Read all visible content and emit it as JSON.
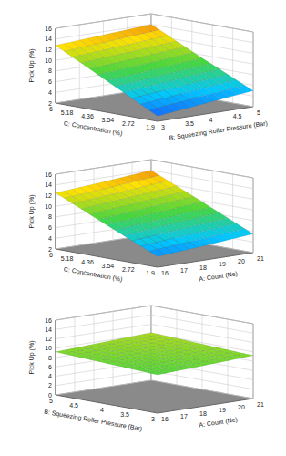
{
  "chart_data": [
    {
      "type": "surface",
      "z_label": "Pick Up (%)",
      "x_label": "C: Concentration (%)",
      "y_label": "B: Squeezing Roller Pressure (Bar)",
      "x": [
        1.9,
        3.95,
        6
      ],
      "y": [
        3,
        4,
        5
      ],
      "z": [
        [
          3.0,
          4.0,
          5.0
        ],
        [
          7.9,
          8.6,
          9.4
        ],
        [
          12.8,
          13.4,
          14.0
        ]
      ],
      "xlim": [
        1.9,
        6
      ],
      "xticks": [
        1.9,
        2.72,
        3.54,
        4.36,
        5.18,
        6
      ],
      "ylim": [
        3,
        5
      ],
      "yticks": [
        3,
        3.5,
        4,
        4.5,
        5
      ],
      "zlim": [
        2,
        16
      ],
      "zticks": [
        2,
        4,
        6,
        8,
        10,
        12,
        14,
        16
      ]
    },
    {
      "type": "surface",
      "z_label": "Pick Up (%)",
      "x_label": "C: Concentration (%)",
      "y_label": "A: Count (Ne)",
      "x": [
        1.9,
        3.95,
        6
      ],
      "y": [
        16,
        18.5,
        21
      ],
      "z": [
        [
          4.0,
          4.7,
          5.5
        ],
        [
          8.2,
          9.0,
          9.8
        ],
        [
          12.5,
          13.2,
          14.0
        ]
      ],
      "xlim": [
        1.9,
        6
      ],
      "xticks": [
        1.9,
        2.72,
        3.54,
        4.36,
        5.18,
        6
      ],
      "ylim": [
        16,
        21
      ],
      "yticks": [
        16,
        17,
        18,
        19,
        20,
        21
      ],
      "zlim": [
        2,
        16
      ],
      "zticks": [
        2,
        4,
        6,
        8,
        10,
        12,
        14,
        16
      ]
    },
    {
      "type": "surface",
      "z_label": "Pick Up (%)",
      "x_label": "B: Squeezing Roller Pressure (Bar)",
      "y_label": "A: Count (Ne)",
      "x": [
        3,
        4,
        5
      ],
      "y": [
        16,
        18.5,
        21
      ],
      "z": [
        [
          8.2,
          8.7,
          9.2
        ],
        [
          8.7,
          9.2,
          9.7
        ],
        [
          9.2,
          9.7,
          10.2
        ]
      ],
      "xlim": [
        3,
        5
      ],
      "xticks": [
        3,
        3.5,
        4,
        4.5,
        5
      ],
      "ylim": [
        16,
        21
      ],
      "yticks": [
        16,
        17,
        18,
        19,
        20,
        21
      ],
      "zlim": [
        0,
        16
      ],
      "zticks": [
        0,
        2,
        4,
        6,
        8,
        10,
        12,
        14,
        16
      ]
    }
  ]
}
